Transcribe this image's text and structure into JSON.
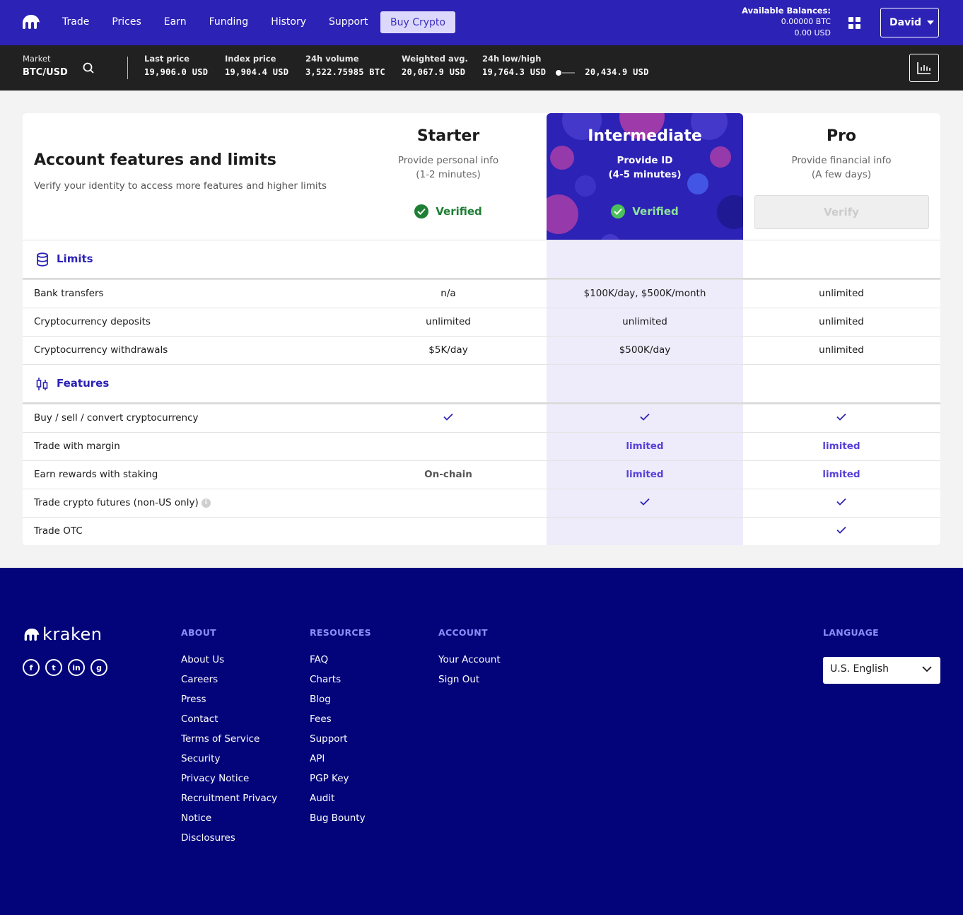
{
  "nav": {
    "links": [
      "Trade",
      "Prices",
      "Earn",
      "Funding",
      "History",
      "Support"
    ],
    "buy_label": "Buy Crypto",
    "balances_title": "Available Balances:",
    "balance_btc": "0.00000 BTC",
    "balance_usd": "0.00 USD",
    "user": "David"
  },
  "market": {
    "label": "Market",
    "pair": "BTC/USD",
    "last_price_label": "Last price",
    "last_price": "19,906.0 USD",
    "index_price_label": "Index price",
    "index_price": "19,904.4 USD",
    "volume_label": "24h volume",
    "volume": "3,522.75985 BTC",
    "weighted_label": "Weighted avg.",
    "weighted": "20,067.9 USD",
    "lowhigh_label": "24h low/high",
    "low": "19,764.3 USD",
    "high": "20,434.9 USD"
  },
  "card": {
    "title": "Account features and limits",
    "subtitle": "Verify your identity to access more features and higher limits",
    "tiers": [
      {
        "name": "Starter",
        "desc1": "Provide personal info",
        "desc2": "(1-2 minutes)",
        "status": "Verified"
      },
      {
        "name": "Intermediate",
        "desc1": "Provide ID",
        "desc2": "(4-5 minutes)",
        "status": "Verified"
      },
      {
        "name": "Pro",
        "desc1": "Provide financial info",
        "desc2": "(A few days)",
        "status": "Verify"
      }
    ],
    "limits_title": "Limits",
    "limits": [
      {
        "label": "Bank transfers",
        "starter": "n/a",
        "intermediate": "$100K/day, $500K/month",
        "pro": "unlimited"
      },
      {
        "label": "Cryptocurrency deposits",
        "starter": "unlimited",
        "intermediate": "unlimited",
        "pro": "unlimited"
      },
      {
        "label": "Cryptocurrency withdrawals",
        "starter": "$5K/day",
        "intermediate": "$500K/day",
        "pro": "unlimited"
      }
    ],
    "features_title": "Features",
    "features": [
      {
        "label": "Buy / sell / convert cryptocurrency"
      },
      {
        "label": "Trade with margin",
        "intermediate": "limited",
        "pro": "limited"
      },
      {
        "label": "Earn rewards with staking",
        "starter": "On-chain",
        "intermediate": "limited",
        "pro": "limited"
      },
      {
        "label": "Trade crypto futures (non-US only)"
      },
      {
        "label": "Trade OTC"
      }
    ]
  },
  "footer": {
    "brand": "kraken",
    "about_title": "ABOUT",
    "about": [
      "About Us",
      "Careers",
      "Press",
      "Contact",
      "Terms of Service",
      "Security",
      "Privacy Notice",
      "Recruitment Privacy",
      "Notice",
      "Disclosures"
    ],
    "resources_title": "RESOURCES",
    "resources": [
      "FAQ",
      "Charts",
      "Blog",
      "Fees",
      "Support",
      "API",
      "PGP Key",
      "Audit",
      "Bug Bounty"
    ],
    "account_title": "ACCOUNT",
    "account": [
      "Your Account",
      "Sign Out"
    ],
    "language_title": "LANGUAGE",
    "language": "U.S. English"
  },
  "colors": {
    "brand": "#2c22b6",
    "footer": "#03047a",
    "accent": "#5741d9",
    "verified": "#1e7e34"
  }
}
